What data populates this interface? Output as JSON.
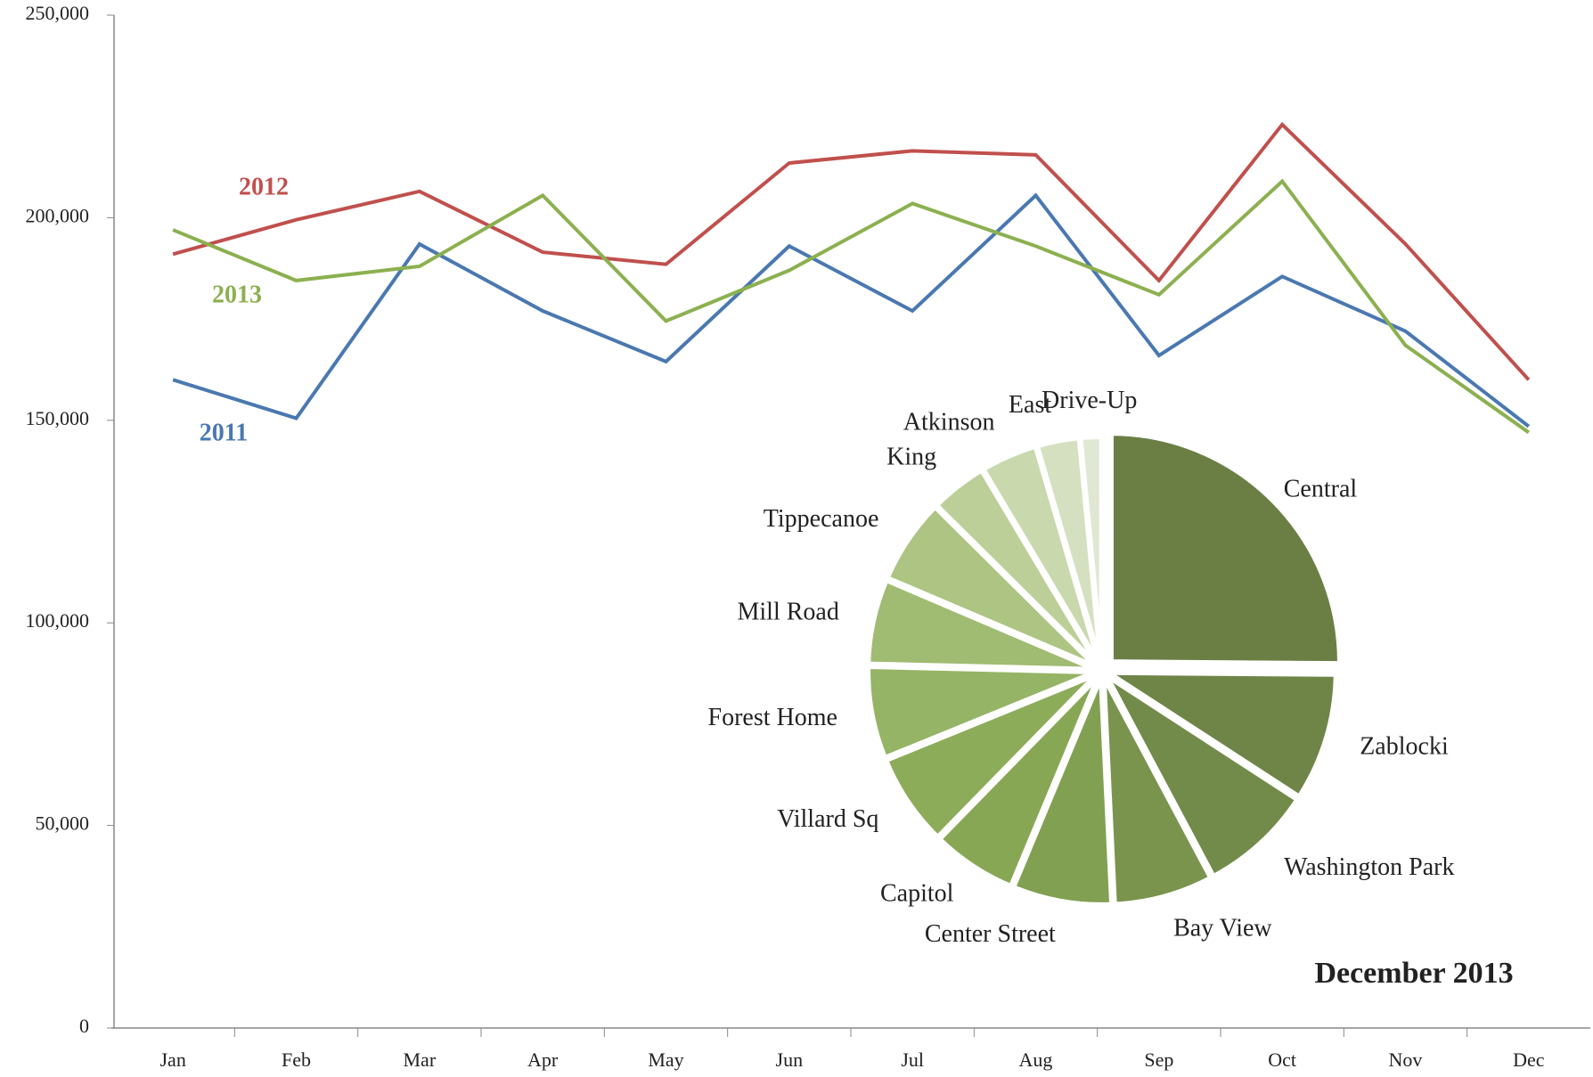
{
  "chart_data": [
    {
      "type": "line",
      "categories": [
        "Jan",
        "Feb",
        "Mar",
        "Apr",
        "May",
        "Jun",
        "Jul",
        "Aug",
        "Sep",
        "Oct",
        "Nov",
        "Dec"
      ],
      "series": [
        {
          "name": "2011",
          "color": "#4a78b0",
          "values": [
            160000,
            150500,
            193500,
            177000,
            164500,
            193000,
            177000,
            205500,
            166000,
            185500,
            172000,
            148500
          ]
        },
        {
          "name": "2012",
          "color": "#c0504d",
          "values": [
            191000,
            199500,
            206500,
            191500,
            188500,
            213500,
            216500,
            215500,
            184500,
            223000,
            193500,
            160000
          ]
        },
        {
          "name": "2013",
          "color": "#8cb050",
          "values": [
            197000,
            184500,
            188000,
            205500,
            174500,
            187000,
            203500,
            193000,
            181000,
            209000,
            168500,
            147000
          ]
        }
      ],
      "ylim": [
        0,
        250000
      ],
      "yticks": [
        0,
        {
          "value": 50000,
          "label": "50,000"
        },
        {
          "value": 100000,
          "label": "100,000"
        },
        {
          "value": 150000,
          "label": "150,000"
        },
        {
          "value": 200000,
          "label": "200,000"
        },
        {
          "value": 250000,
          "label": "250,000"
        }
      ],
      "grid": false
    },
    {
      "type": "pie",
      "title": "December 2013",
      "categories": [
        "Central",
        "Zablocki",
        "Washington Park",
        "Bay View",
        "Center Street",
        "Capitol",
        "Villard Sq",
        "Forest Home",
        "Mill Road",
        "Tippecanoe",
        "King",
        "Atkinson",
        "East",
        "Drive-Up"
      ],
      "values": [
        25,
        9,
        8,
        7,
        7,
        6,
        6.5,
        6.5,
        6,
        6,
        4,
        4,
        3,
        1.5
      ],
      "colors": [
        "#6b7f45",
        "#6f8548",
        "#738b4a",
        "#7a944e",
        "#82a052",
        "#88a755",
        "#8dac5a",
        "#96b466",
        "#a0bb72",
        "#aec483",
        "#bccf98",
        "#c9d8ad",
        "#d5e0c0",
        "#e0e8d3"
      ]
    }
  ]
}
